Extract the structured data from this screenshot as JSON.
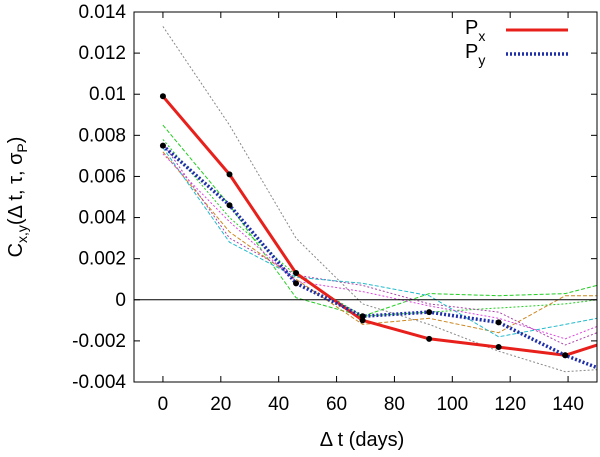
{
  "chart_data": {
    "type": "line",
    "title": "",
    "xlabel": "Δ t (days)",
    "ylabel": "C",
    "ylabel_sub": "x,y",
    "ylabel_args_prefix": "(Δ t, τ, σ",
    "ylabel_args_sub": "P",
    "ylabel_args_suffix": ")",
    "xlim": [
      -10,
      150
    ],
    "ylim": [
      -0.004,
      0.014
    ],
    "xticks": [
      0,
      20,
      40,
      60,
      80,
      100,
      120,
      140
    ],
    "yticks": [
      -0.004,
      -0.002,
      0,
      0.002,
      0.004,
      0.006,
      0.008,
      0.01,
      0.012,
      0.014
    ],
    "xtick_labels": [
      "0",
      "20",
      "40",
      "60",
      "80",
      "100",
      "120",
      "140"
    ],
    "ytick_labels": [
      "-0.004",
      "-0.002",
      "0",
      "0.002",
      "0.004",
      "0.006",
      "0.008",
      "0.01",
      "0.012",
      "0.014"
    ],
    "zero_line": true,
    "grid": false,
    "legend_position": "top-right",
    "series": [
      {
        "name": "Px",
        "label_main": "P",
        "label_sub": "x",
        "color": "#e8201c",
        "style": "solid",
        "width": "thick",
        "markers": true,
        "x": [
          0,
          23,
          46,
          69,
          92,
          116,
          139,
          150
        ],
        "y": [
          0.0099,
          0.0061,
          0.0013,
          -0.001,
          -0.0019,
          -0.0023,
          -0.0027,
          -0.0022
        ]
      },
      {
        "name": "Py",
        "label_main": "P",
        "label_sub": "y",
        "color": "#1f2fa8",
        "style": "dotted",
        "width": "thick",
        "markers": true,
        "x": [
          0,
          23,
          46,
          69,
          92,
          116,
          139,
          150
        ],
        "y": [
          0.0075,
          0.0046,
          0.0008,
          -0.0008,
          -0.0006,
          -0.0011,
          -0.0027,
          -0.0033
        ]
      }
    ],
    "background_series": [
      {
        "name": "bg-1",
        "color": "#888888",
        "x": [
          0,
          23,
          46,
          69,
          92,
          116,
          139,
          150
        ],
        "y": [
          0.0133,
          0.0085,
          0.003,
          -0.0002,
          -0.0012,
          -0.0025,
          -0.0035,
          -0.0034
        ]
      },
      {
        "name": "bg-2",
        "color": "#22cc22",
        "x": [
          0,
          23,
          46,
          69,
          92,
          116,
          139,
          150
        ],
        "y": [
          0.0085,
          0.0046,
          0.0001,
          -0.0008,
          0.0003,
          0.0002,
          0.0003,
          0.0007
        ]
      },
      {
        "name": "bg-3",
        "color": "#22cc22",
        "x": [
          0,
          23,
          46,
          69,
          92,
          116,
          139,
          150
        ],
        "y": [
          0.0078,
          0.004,
          0.0012,
          -0.0008,
          -0.0006,
          -0.0004,
          -0.0002,
          0.0
        ]
      },
      {
        "name": "bg-4",
        "color": "#cc8822",
        "x": [
          0,
          23,
          46,
          69,
          92,
          116,
          139,
          150
        ],
        "y": [
          0.0072,
          0.0033,
          0.001,
          -0.0012,
          -0.0009,
          -0.0016,
          0.0002,
          0.0002
        ]
      },
      {
        "name": "bg-5",
        "color": "#aa44aa",
        "x": [
          0,
          23,
          46,
          69,
          92,
          116,
          139,
          150
        ],
        "y": [
          0.0076,
          0.003,
          0.0012,
          0.0007,
          -0.0002,
          -0.0006,
          -0.0022,
          -0.0016
        ]
      },
      {
        "name": "bg-6",
        "color": "#22bbcc",
        "x": [
          0,
          23,
          46,
          69,
          92,
          116,
          139,
          150
        ],
        "y": [
          0.0074,
          0.0028,
          0.0011,
          0.0008,
          0.0002,
          -0.0018,
          -0.0012,
          -0.0009
        ]
      },
      {
        "name": "bg-7",
        "color": "#dd44dd",
        "x": [
          0,
          23,
          46,
          69,
          92,
          116,
          139,
          150
        ],
        "y": [
          0.0071,
          0.0038,
          0.0009,
          0.0004,
          -0.0003,
          -0.0009,
          -0.0019,
          -0.0013
        ]
      }
    ]
  }
}
